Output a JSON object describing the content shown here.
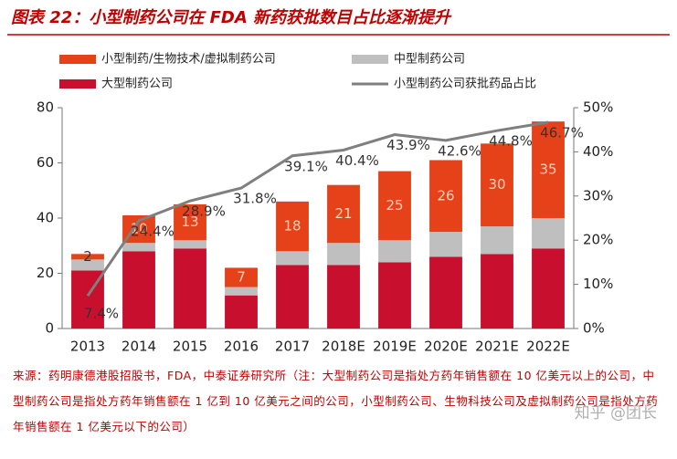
{
  "chart_data": {
    "type": "bar",
    "title": "图表 22：小型制药公司在 FDA 新药获批数目占比逐渐提升",
    "categories": [
      "2013",
      "2014",
      "2015",
      "2016",
      "2017",
      "2018E",
      "2019E",
      "2020E",
      "2021E",
      "2022E"
    ],
    "series": [
      {
        "name": "小型制药/生物技术/虚拟制药公司",
        "type": "bar",
        "color": "#e5421a",
        "show_labels": true,
        "values": [
          2,
          10,
          13,
          7,
          18,
          21,
          25,
          26,
          30,
          35
        ]
      },
      {
        "name": "中型制药公司",
        "type": "bar",
        "color": "#bfbfbf",
        "values": [
          4,
          3,
          3,
          3,
          5,
          8,
          8,
          9,
          10,
          11
        ]
      },
      {
        "name": "大型制药公司",
        "type": "bar",
        "color": "#c8102e",
        "values": [
          21,
          28,
          29,
          12,
          23,
          23,
          24,
          26,
          27,
          29
        ]
      },
      {
        "name": "小型制药公司获批药品占比",
        "type": "line",
        "axis": "y2",
        "color": "#7f7f7f",
        "values": [
          7.4,
          24.4,
          28.9,
          31.8,
          39.1,
          40.4,
          43.9,
          42.6,
          44.8,
          46.7
        ],
        "value_labels": [
          "7.4%",
          "24.4%",
          "28.9%",
          "31.8%",
          "39.1%",
          "40.4%",
          "43.9%",
          "42.6%",
          "44.8%",
          "46.7%"
        ]
      }
    ],
    "ylim": [
      0,
      80
    ],
    "yticks": [
      0,
      20,
      40,
      60,
      80
    ],
    "y2lim": [
      0,
      50
    ],
    "y2ticks": [
      {
        "value": 0,
        "label": "0%"
      },
      {
        "value": 10,
        "label": "10%"
      },
      {
        "value": 20,
        "label": "20%"
      },
      {
        "value": 30,
        "label": "30%"
      },
      {
        "value": 40,
        "label": "40%"
      },
      {
        "value": 50,
        "label": "50%"
      }
    ],
    "source": "来源：药明康德港股招股书，FDA，中泰证券研究所（注：大型制药公司是指处方药年销售额在 10 亿美元以上的公司，中型制药公司是指处方药年销售额在 1 亿到 10 亿美元之间的公司，小型制药公司、生物科技公司及虚拟制药公司是指处方药年销售额在 1 亿美元以下的公司）",
    "watermark": "知乎 @团长"
  }
}
